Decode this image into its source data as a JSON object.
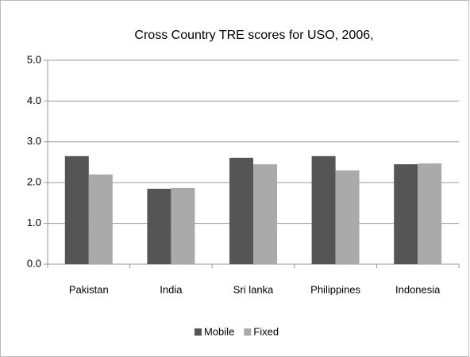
{
  "chart_data": {
    "type": "bar",
    "title": "Cross Country TRE scores for USO, 2006,",
    "categories": [
      "Pakistan",
      "India",
      "Sri lanka",
      "Philippines",
      "Indonesia"
    ],
    "series": [
      {
        "name": "Mobile",
        "color": "#555555",
        "values": [
          2.65,
          1.85,
          2.61,
          2.65,
          2.45
        ]
      },
      {
        "name": "Fixed",
        "color": "#aaaaaa",
        "values": [
          2.2,
          1.87,
          2.45,
          2.3,
          2.47
        ]
      }
    ],
    "ylim": [
      0,
      5
    ],
    "yticks": [
      {
        "value": 0,
        "label": "0.0"
      },
      {
        "value": 1,
        "label": "1.0"
      },
      {
        "value": 2,
        "label": "2.0"
      },
      {
        "value": 3,
        "label": "3.0"
      },
      {
        "value": 4,
        "label": "4.0"
      },
      {
        "value": 5,
        "label": "5.0"
      }
    ],
    "grid": true,
    "legend": "bottom"
  }
}
